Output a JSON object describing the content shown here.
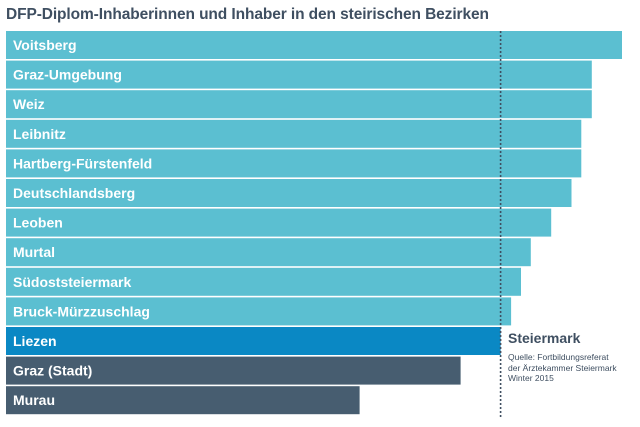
{
  "title": "DFP-Diplom-Inhaberinnen und Inhaber in den steirischen Bezirken",
  "reference_label": "Steiermark",
  "source_lines": [
    "Quelle: Fortbildungsreferat",
    "der Ärztekammer Steiermark",
    "Winter 2015"
  ],
  "colors": {
    "above_reference": "#5bbfd1",
    "reference": "#0a88c4",
    "below_reference": "#475d70",
    "reference_line": "#3f4f61"
  },
  "chart_data": {
    "type": "bar",
    "orientation": "horizontal",
    "title": "DFP-Diplom-Inhaberinnen und Inhaber in den steirischen Bezirken",
    "xlabel": "",
    "ylabel": "",
    "xlim": [
      0,
      100
    ],
    "value_note": "relative bar lengths (no axis printed); longest bar = 100",
    "categories": [
      "Voitsberg",
      "Graz-Umgebung",
      "Weiz",
      "Leibnitz",
      "Hartberg-Fürstenfeld",
      "Deutschlandsberg",
      "Leoben",
      "Murtal",
      "Südoststeiermark",
      "Bruck-Mürzzuschlag",
      "Liezen",
      "Graz (Stadt)",
      "Murau"
    ],
    "values": [
      100,
      95.1,
      95.1,
      93.4,
      93.4,
      91.8,
      88.5,
      85.2,
      83.6,
      82.0,
      80.3,
      73.8,
      57.4
    ],
    "highlight": "Liezen",
    "reference": {
      "label": "Steiermark",
      "value": 80.3
    },
    "grid": false,
    "legend": "none"
  }
}
